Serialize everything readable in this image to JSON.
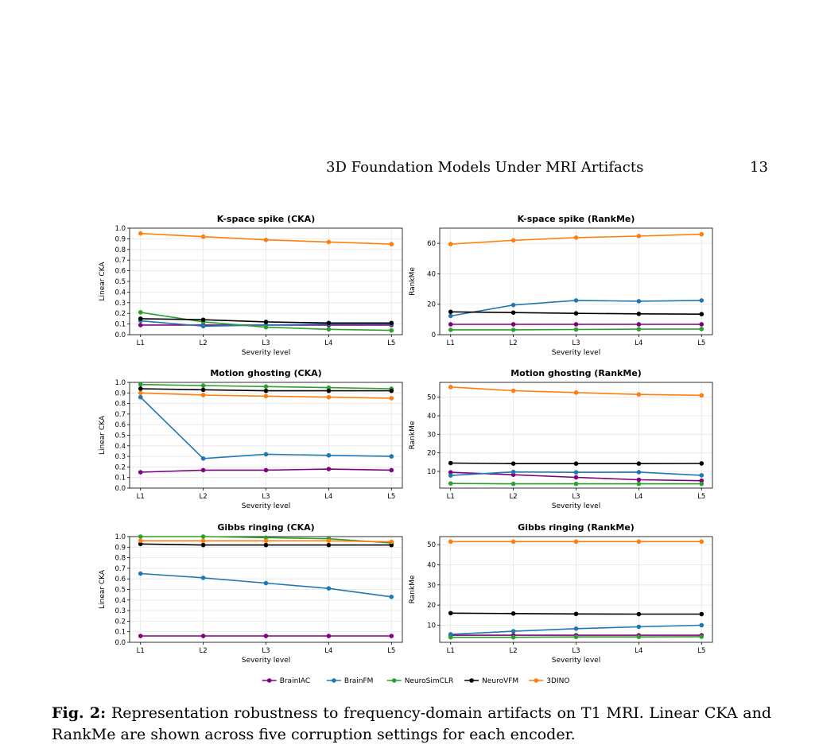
{
  "header": {
    "running_title": "3D Foundation Models Under MRI Artifacts",
    "page_number": "13"
  },
  "caption": {
    "label": "Fig. 2:",
    "text": "Representation robustness to frequency-domain artifacts on T1 MRI. Linear CKA and RankMe are shown across five corruption settings for each encoder."
  },
  "legend": {
    "placement": "bottom-center",
    "entries": [
      "BrainIAC",
      "BrainFM",
      "NeuroSimCLR",
      "NeuroVFM",
      "3DINO"
    ]
  },
  "colors": {
    "BrainIAC": "#800080",
    "BrainFM": "#1f77b4",
    "NeuroSimCLR": "#2ca02c",
    "NeuroVFM": "#000000",
    "3DINO": "#ff7f0e",
    "grid": "#e6e6e6"
  },
  "chart_data": [
    {
      "type": "line",
      "title": "K-space spike (CKA)",
      "xlabel": "Severity level",
      "ylabel": "Linear CKA",
      "categories": [
        "L1",
        "L2",
        "L3",
        "L4",
        "L5"
      ],
      "ylim": [
        0,
        1.0
      ],
      "yticks": [
        0.0,
        0.1,
        0.2,
        0.3,
        0.4,
        0.5,
        0.6,
        0.7,
        0.8,
        0.9,
        1.0
      ],
      "ytick_labels": [
        "0.0",
        "0.1",
        "0.2",
        "0.3",
        "0.4",
        "0.5",
        "0.6",
        "0.7",
        "0.8",
        "0.9",
        "1.0"
      ],
      "grid": true,
      "series": [
        {
          "name": "BrainIAC",
          "values": [
            0.09,
            0.09,
            0.09,
            0.09,
            0.09
          ]
        },
        {
          "name": "BrainFM",
          "values": [
            0.13,
            0.08,
            0.09,
            0.1,
            0.1
          ]
        },
        {
          "name": "NeuroSimCLR",
          "values": [
            0.21,
            0.12,
            0.07,
            0.05,
            0.04
          ]
        },
        {
          "name": "NeuroVFM",
          "values": [
            0.15,
            0.14,
            0.12,
            0.11,
            0.11
          ]
        },
        {
          "name": "3DINO",
          "values": [
            0.95,
            0.92,
            0.89,
            0.87,
            0.85
          ]
        }
      ]
    },
    {
      "type": "line",
      "title": "K-space spike (RankMe)",
      "xlabel": "Severity level",
      "ylabel": "RankMe",
      "categories": [
        "L1",
        "L2",
        "L3",
        "L4",
        "L5"
      ],
      "ylim": [
        0,
        70
      ],
      "yticks": [
        0,
        20,
        40,
        60
      ],
      "ytick_labels": [
        "0",
        "20",
        "40",
        "60"
      ],
      "grid": true,
      "series": [
        {
          "name": "BrainIAC",
          "values": [
            6.8,
            6.8,
            6.8,
            6.8,
            6.8
          ]
        },
        {
          "name": "BrainFM",
          "values": [
            12.3,
            19.5,
            22.5,
            22.0,
            22.5
          ]
        },
        {
          "name": "NeuroSimCLR",
          "values": [
            3.2,
            3.2,
            3.4,
            3.6,
            3.7
          ]
        },
        {
          "name": "NeuroVFM",
          "values": [
            15.0,
            14.5,
            14.0,
            13.7,
            13.5
          ]
        },
        {
          "name": "3DINO",
          "values": [
            59.5,
            62.0,
            63.8,
            64.8,
            66.0
          ]
        }
      ]
    },
    {
      "type": "line",
      "title": "Motion ghosting (CKA)",
      "xlabel": "Severity level",
      "ylabel": "Linear CKA",
      "categories": [
        "L1",
        "L2",
        "L3",
        "L4",
        "L5"
      ],
      "ylim": [
        0,
        1.0
      ],
      "yticks": [
        0.0,
        0.1,
        0.2,
        0.3,
        0.4,
        0.5,
        0.6,
        0.7,
        0.8,
        0.9,
        1.0
      ],
      "ytick_labels": [
        "0.0",
        "0.1",
        "0.2",
        "0.3",
        "0.4",
        "0.5",
        "0.6",
        "0.7",
        "0.8",
        "0.9",
        "1.0"
      ],
      "grid": true,
      "series": [
        {
          "name": "BrainIAC",
          "values": [
            0.15,
            0.17,
            0.17,
            0.18,
            0.17
          ]
        },
        {
          "name": "BrainFM",
          "values": [
            0.86,
            0.28,
            0.32,
            0.31,
            0.3
          ]
        },
        {
          "name": "NeuroSimCLR",
          "values": [
            0.98,
            0.97,
            0.96,
            0.95,
            0.94
          ]
        },
        {
          "name": "NeuroVFM",
          "values": [
            0.94,
            0.93,
            0.92,
            0.92,
            0.92
          ]
        },
        {
          "name": "3DINO",
          "values": [
            0.9,
            0.88,
            0.87,
            0.86,
            0.85
          ]
        }
      ]
    },
    {
      "type": "line",
      "title": "Motion ghosting (RankMe)",
      "xlabel": "Severity level",
      "ylabel": "RankMe",
      "categories": [
        "L1",
        "L2",
        "L3",
        "L4",
        "L5"
      ],
      "ylim": [
        1,
        58
      ],
      "yticks": [
        10,
        20,
        30,
        40,
        50
      ],
      "ytick_labels": [
        "10",
        "20",
        "30",
        "40",
        "50"
      ],
      "grid": true,
      "series": [
        {
          "name": "BrainIAC",
          "values": [
            9.5,
            8.2,
            6.8,
            5.5,
            5.0
          ]
        },
        {
          "name": "BrainFM",
          "values": [
            7.8,
            9.7,
            9.5,
            9.6,
            7.9
          ]
        },
        {
          "name": "NeuroSimCLR",
          "values": [
            3.5,
            3.3,
            3.3,
            3.3,
            3.3
          ]
        },
        {
          "name": "NeuroVFM",
          "values": [
            14.5,
            14.2,
            14.2,
            14.2,
            14.3
          ]
        },
        {
          "name": "3DINO",
          "values": [
            55.5,
            53.5,
            52.5,
            51.5,
            51.0
          ]
        }
      ]
    },
    {
      "type": "line",
      "title": "Gibbs ringing (CKA)",
      "xlabel": "Severity level",
      "ylabel": "Linear CKA",
      "categories": [
        "L1",
        "L2",
        "L3",
        "L4",
        "L5"
      ],
      "ylim": [
        0,
        1.0
      ],
      "yticks": [
        0.0,
        0.1,
        0.2,
        0.3,
        0.4,
        0.5,
        0.6,
        0.7,
        0.8,
        0.9,
        1.0
      ],
      "ytick_labels": [
        "0.0",
        "0.1",
        "0.2",
        "0.3",
        "0.4",
        "0.5",
        "0.6",
        "0.7",
        "0.8",
        "0.9",
        "1.0"
      ],
      "grid": true,
      "series": [
        {
          "name": "BrainIAC",
          "values": [
            0.06,
            0.06,
            0.06,
            0.06,
            0.06
          ]
        },
        {
          "name": "BrainFM",
          "values": [
            0.65,
            0.61,
            0.56,
            0.51,
            0.43
          ]
        },
        {
          "name": "NeuroSimCLR",
          "values": [
            1.0,
            1.0,
            0.99,
            0.98,
            0.94
          ]
        },
        {
          "name": "NeuroVFM",
          "values": [
            0.93,
            0.92,
            0.92,
            0.92,
            0.92
          ]
        },
        {
          "name": "3DINO",
          "values": [
            0.96,
            0.96,
            0.96,
            0.96,
            0.95
          ]
        }
      ]
    },
    {
      "type": "line",
      "title": "Gibbs ringing (RankMe)",
      "xlabel": "Severity level",
      "ylabel": "RankMe",
      "categories": [
        "L1",
        "L2",
        "L3",
        "L4",
        "L5"
      ],
      "ylim": [
        1.5,
        54
      ],
      "yticks": [
        10,
        20,
        30,
        40,
        50
      ],
      "ytick_labels": [
        "10",
        "20",
        "30",
        "40",
        "50"
      ],
      "grid": true,
      "series": [
        {
          "name": "BrainIAC",
          "values": [
            5.0,
            5.0,
            5.0,
            5.0,
            5.0
          ]
        },
        {
          "name": "BrainFM",
          "values": [
            5.5,
            7.0,
            8.3,
            9.2,
            10.0
          ]
        },
        {
          "name": "NeuroSimCLR",
          "values": [
            4.0,
            4.0,
            4.2,
            4.2,
            4.3
          ]
        },
        {
          "name": "NeuroVFM",
          "values": [
            16.0,
            15.8,
            15.6,
            15.5,
            15.5
          ]
        },
        {
          "name": "3DINO",
          "values": [
            51.5,
            51.5,
            51.5,
            51.5,
            51.5
          ]
        }
      ]
    }
  ]
}
